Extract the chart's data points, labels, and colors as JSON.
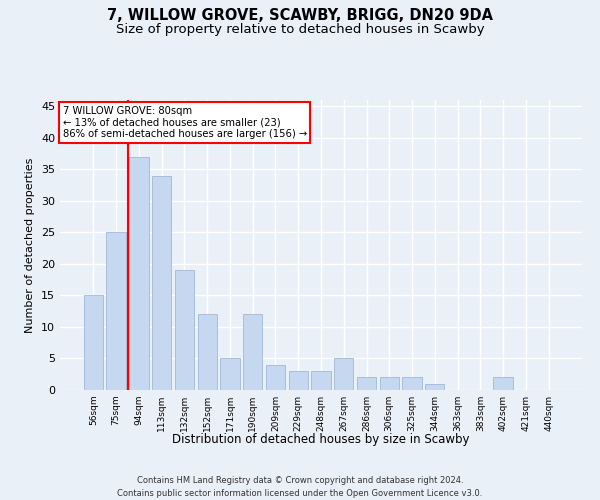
{
  "title1": "7, WILLOW GROVE, SCAWBY, BRIGG, DN20 9DA",
  "title2": "Size of property relative to detached houses in Scawby",
  "xlabel": "Distribution of detached houses by size in Scawby",
  "ylabel": "Number of detached properties",
  "categories": [
    "56sqm",
    "75sqm",
    "94sqm",
    "113sqm",
    "132sqm",
    "152sqm",
    "171sqm",
    "190sqm",
    "209sqm",
    "229sqm",
    "248sqm",
    "267sqm",
    "286sqm",
    "306sqm",
    "325sqm",
    "344sqm",
    "363sqm",
    "383sqm",
    "402sqm",
    "421sqm",
    "440sqm"
  ],
  "values": [
    15,
    25,
    37,
    34,
    19,
    12,
    5,
    12,
    4,
    3,
    3,
    5,
    2,
    2,
    2,
    1,
    0,
    0,
    2,
    0,
    0
  ],
  "bar_color": "#c5d8f0",
  "bar_edge_color": "#a0b8d8",
  "ylim": [
    0,
    46
  ],
  "yticks": [
    0,
    5,
    10,
    15,
    20,
    25,
    30,
    35,
    40,
    45
  ],
  "property_line_label": "7 WILLOW GROVE: 80sqm",
  "annotation_line1": "← 13% of detached houses are smaller (23)",
  "annotation_line2": "86% of semi-detached houses are larger (156) →",
  "footer1": "Contains HM Land Registry data © Crown copyright and database right 2024.",
  "footer2": "Contains public sector information licensed under the Open Government Licence v3.0.",
  "bg_color": "#eaf0f8",
  "plot_bg_color": "#eaf0f8",
  "grid_color": "#ffffff",
  "title1_fontsize": 10.5,
  "title2_fontsize": 9.5
}
